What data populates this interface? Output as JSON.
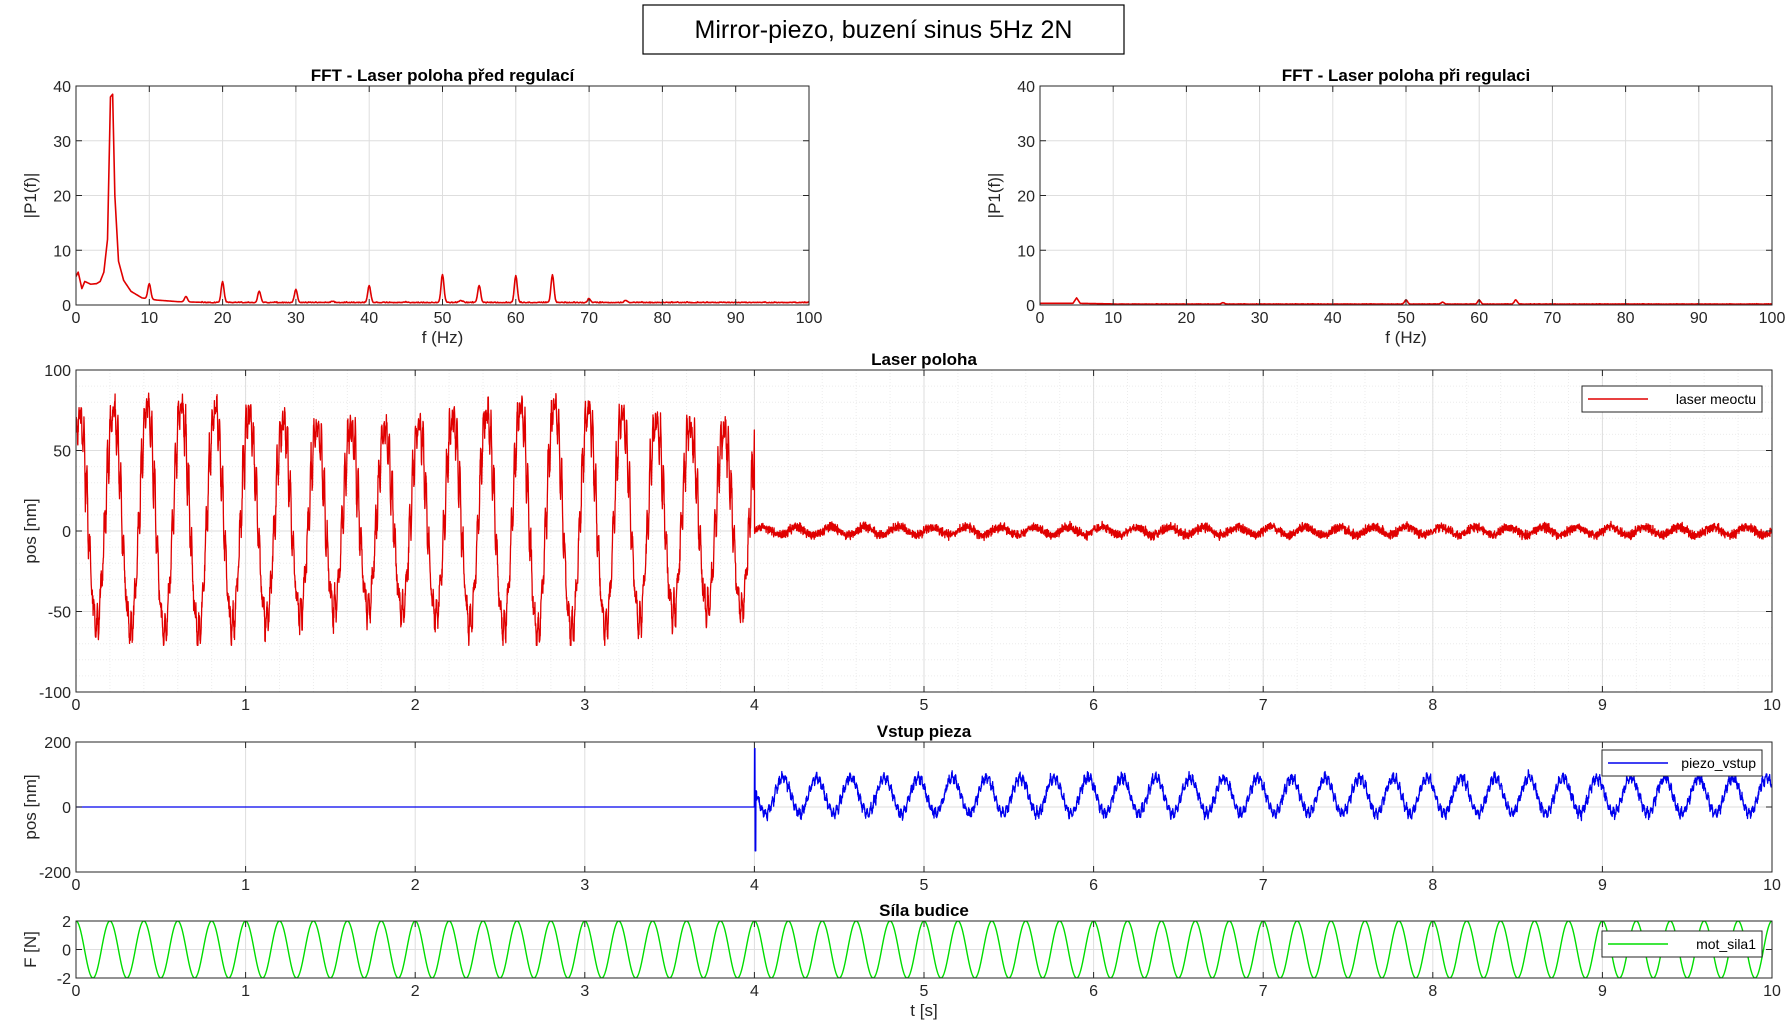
{
  "figure": {
    "suptitle": "Mirror-piezo, buzení sinus 5Hz 2N"
  },
  "chart_data": [
    {
      "id": "fft_before",
      "type": "line",
      "title": "FFT - Laser poloha před regulací",
      "xlabel": "f (Hz)",
      "ylabel": "|P1(f)|",
      "xlim": [
        0,
        100
      ],
      "ylim": [
        0,
        40
      ],
      "xticks": [
        0,
        10,
        20,
        30,
        40,
        50,
        60,
        70,
        80,
        90,
        100
      ],
      "yticks": [
        0,
        10,
        20,
        30,
        40
      ],
      "grid": true,
      "color": "#e00000",
      "baseline": 0.4,
      "low_freq": [
        [
          0,
          5.2
        ],
        [
          0.3,
          6
        ],
        [
          0.8,
          3
        ],
        [
          1.2,
          4.3
        ],
        [
          2,
          3.8
        ],
        [
          2.8,
          3.9
        ],
        [
          3.3,
          4.3
        ],
        [
          3.8,
          6
        ],
        [
          4.3,
          12
        ],
        [
          4.7,
          38
        ],
        [
          5,
          38.5
        ],
        [
          5.3,
          20
        ],
        [
          5.8,
          8
        ],
        [
          6.5,
          4.5
        ],
        [
          7.5,
          2.5
        ],
        [
          9,
          1.3
        ],
        [
          11,
          0.9
        ],
        [
          14,
          0.6
        ],
        [
          17,
          0.5
        ]
      ],
      "peaks": [
        [
          10,
          3.2
        ],
        [
          15,
          1.4
        ],
        [
          20,
          4.2
        ],
        [
          25,
          2.5
        ],
        [
          30,
          2.8
        ],
        [
          35,
          0.6
        ],
        [
          40,
          3.5
        ],
        [
          45,
          0.5
        ],
        [
          50,
          5.5
        ],
        [
          52.5,
          0.8
        ],
        [
          55,
          3.5
        ],
        [
          60,
          5.3
        ],
        [
          65,
          5.5
        ],
        [
          70,
          1.1
        ],
        [
          75,
          0.8
        ],
        [
          80,
          0.4
        ]
      ]
    },
    {
      "id": "fft_during",
      "type": "line",
      "title": "FFT - Laser poloha při regulaci",
      "xlabel": "f (Hz)",
      "ylabel": "|P1(f)|",
      "xlim": [
        0,
        100
      ],
      "ylim": [
        0,
        40
      ],
      "xticks": [
        0,
        10,
        20,
        30,
        40,
        50,
        60,
        70,
        80,
        90,
        100
      ],
      "yticks": [
        0,
        10,
        20,
        30,
        40
      ],
      "grid": true,
      "color": "#e00000",
      "baseline": 0.15,
      "low_freq": [
        [
          0,
          0.3
        ],
        [
          4.5,
          0.3
        ],
        [
          5,
          1.3
        ],
        [
          5.5,
          0.3
        ],
        [
          10,
          0.2
        ]
      ],
      "peaks": [
        [
          25,
          0.4
        ],
        [
          50,
          0.9
        ],
        [
          55,
          0.5
        ],
        [
          60,
          0.9
        ],
        [
          65,
          0.9
        ]
      ]
    },
    {
      "id": "laser",
      "type": "line",
      "title": "Laser poloha",
      "xlabel": "",
      "ylabel": "pos [nm]",
      "xlim": [
        0,
        10
      ],
      "ylim": [
        -100,
        100
      ],
      "xticks": [
        0,
        1,
        2,
        3,
        4,
        5,
        6,
        7,
        8,
        9,
        10
      ],
      "yticks": [
        -100,
        -50,
        0,
        50,
        100
      ],
      "grid": true,
      "minor_grid": true,
      "legend": {
        "label": "laser meoctu",
        "location": "top-right"
      },
      "color": "#e00000",
      "before_control": {
        "t_range": [
          0,
          4
        ],
        "signal": "sinus 5 Hz",
        "center": 7,
        "amplitude": 63,
        "max": 86,
        "min": -71
      },
      "during_control": {
        "t_range": [
          4,
          10
        ],
        "center": 0,
        "amplitude": 2.5,
        "noise": 5
      }
    },
    {
      "id": "piezo",
      "type": "line",
      "title": "Vstup pieza",
      "xlabel": "",
      "ylabel": "pos [nm]",
      "xlim": [
        0,
        10
      ],
      "ylim": [
        -200,
        200
      ],
      "xticks": [
        0,
        1,
        2,
        3,
        4,
        5,
        6,
        7,
        8,
        9,
        10
      ],
      "yticks": [
        -200,
        0,
        200
      ],
      "grid": true,
      "legend": {
        "label": "piezo_vstup",
        "location": "top-right"
      },
      "color": "#0000ee",
      "before_control": {
        "t_range": [
          0,
          4
        ],
        "value": 0
      },
      "during_control": {
        "t_range": [
          4,
          10
        ],
        "signal": "sinus 5 Hz",
        "center": 35,
        "amplitude": 55,
        "max": 180,
        "min": -135
      }
    },
    {
      "id": "force",
      "type": "line",
      "title": "Síla budice",
      "xlabel": "t [s]",
      "ylabel": "F [N]",
      "xlim": [
        0,
        10
      ],
      "ylim": [
        -2,
        2
      ],
      "xticks": [
        0,
        1,
        2,
        3,
        4,
        5,
        6,
        7,
        8,
        9,
        10
      ],
      "yticks": [
        -2,
        0,
        2
      ],
      "grid": true,
      "legend": {
        "label": "mot_sila1",
        "location": "right"
      },
      "color": "#00dd00",
      "signal": {
        "frequency_hz": 5,
        "amplitude": 2,
        "phase": "cos"
      }
    }
  ]
}
